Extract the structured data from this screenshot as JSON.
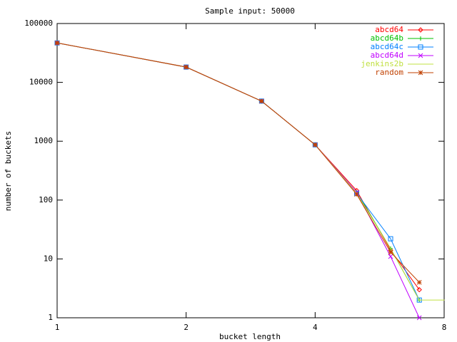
{
  "chart_data": {
    "type": "line",
    "title": "Sample input: 50000",
    "x_label": "bucket length",
    "y_label": "number of buckets",
    "x": [
      1,
      2,
      3,
      4,
      5,
      6,
      7,
      8
    ],
    "xlog": true,
    "ylog": true,
    "xlim": [
      1,
      8
    ],
    "ylim": [
      1,
      100000
    ],
    "xticks": [
      1,
      2,
      4,
      8
    ],
    "yticks": [
      1,
      10,
      100,
      1000,
      10000,
      100000
    ],
    "grid": false,
    "legend": "top right",
    "series": [
      {
        "name": "abcd64",
        "color": "#ff0000",
        "values": [
          46800,
          18200,
          4800,
          870,
          145,
          14,
          3,
          null
        ]
      },
      {
        "name": "abcd64b",
        "color": "#00c000",
        "values": [
          46800,
          18200,
          4800,
          870,
          135,
          15,
          2,
          null
        ]
      },
      {
        "name": "abcd64c",
        "color": "#0080ff",
        "values": [
          46800,
          18200,
          4800,
          870,
          130,
          22,
          2,
          null
        ]
      },
      {
        "name": "abcd64d",
        "color": "#c000ff",
        "values": [
          46800,
          18200,
          4800,
          870,
          135,
          11,
          1,
          null
        ]
      },
      {
        "name": "jenkins2b",
        "color": "#c0e040",
        "values": [
          46800,
          18200,
          4800,
          870,
          130,
          15,
          2,
          2
        ]
      },
      {
        "name": "random",
        "color": "#c04000",
        "values": [
          46800,
          18200,
          4800,
          870,
          125,
          13,
          4,
          null
        ]
      }
    ]
  }
}
